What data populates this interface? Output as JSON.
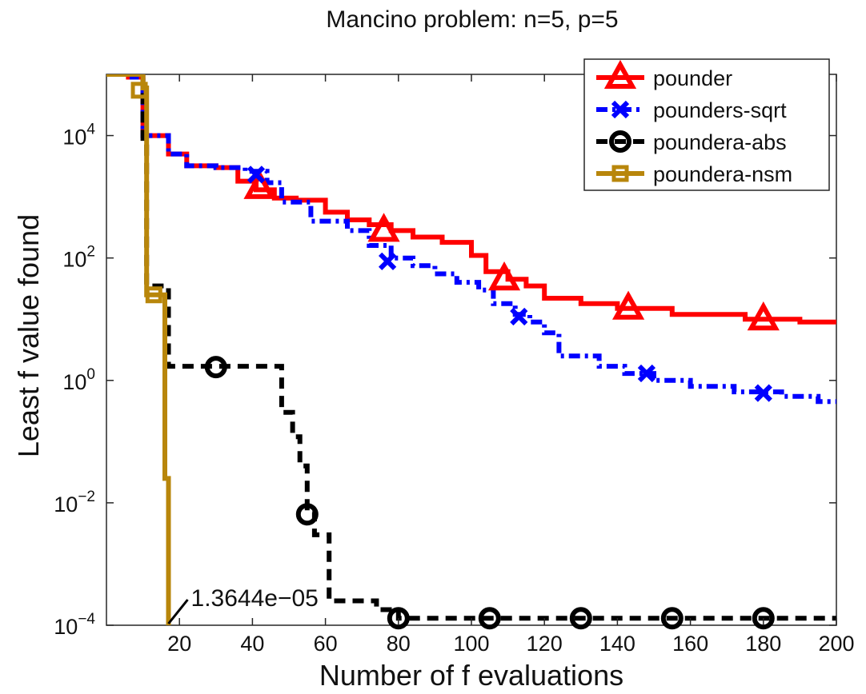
{
  "chart_data": {
    "type": "line",
    "title": "Mancino problem: n=5, p=5",
    "xlabel": "Number of f evaluations",
    "ylabel": "Least f value found",
    "xlim": [
      0,
      200
    ],
    "ylim": [
      0.0001,
      100000
    ],
    "yscale": "log",
    "grid": false,
    "legend_position": "top-right",
    "x_ticks": [
      20,
      40,
      60,
      80,
      100,
      120,
      140,
      160,
      180,
      200
    ],
    "y_ticks": [
      {
        "value": 0.0001,
        "base": "10",
        "exp": "−4"
      },
      {
        "value": 0.01,
        "base": "10",
        "exp": "−2"
      },
      {
        "value": 1,
        "base": "10",
        "exp": "0"
      },
      {
        "value": 100,
        "base": "10",
        "exp": "2"
      },
      {
        "value": 10000,
        "base": "10",
        "exp": "4"
      }
    ],
    "annotation": {
      "text": "1.3644e−05",
      "x": 17,
      "y": 0.0001,
      "color": "#B8860B"
    },
    "series": [
      {
        "name": "pounder",
        "color": "#FF0000",
        "dash": "",
        "width": 6,
        "marker": "triangle",
        "points": [
          [
            0,
            100000
          ],
          [
            6,
            100000
          ],
          [
            6,
            90000
          ],
          [
            10,
            90000
          ],
          [
            10,
            10000
          ],
          [
            17,
            10000
          ],
          [
            17,
            5000
          ],
          [
            22,
            5000
          ],
          [
            22,
            3200
          ],
          [
            30,
            3200
          ],
          [
            30,
            3000
          ],
          [
            36,
            3000
          ],
          [
            36,
            1800
          ],
          [
            41,
            1800
          ],
          [
            41,
            1300
          ],
          [
            46,
            1300
          ],
          [
            46,
            950
          ],
          [
            52,
            950
          ],
          [
            52,
            880
          ],
          [
            60,
            880
          ],
          [
            60,
            560
          ],
          [
            66,
            560
          ],
          [
            66,
            420
          ],
          [
            72,
            420
          ],
          [
            72,
            350
          ],
          [
            78,
            350
          ],
          [
            78,
            280
          ],
          [
            84,
            280
          ],
          [
            84,
            220
          ],
          [
            92,
            220
          ],
          [
            92,
            180
          ],
          [
            100,
            180
          ],
          [
            100,
            110
          ],
          [
            104,
            110
          ],
          [
            104,
            60
          ],
          [
            110,
            60
          ],
          [
            110,
            45
          ],
          [
            115,
            45
          ],
          [
            115,
            35
          ],
          [
            120,
            35
          ],
          [
            120,
            22
          ],
          [
            130,
            22
          ],
          [
            130,
            18
          ],
          [
            140,
            18
          ],
          [
            140,
            15
          ],
          [
            155,
            15
          ],
          [
            155,
            12
          ],
          [
            175,
            12
          ],
          [
            175,
            10
          ],
          [
            190,
            10
          ],
          [
            190,
            9
          ],
          [
            200,
            9
          ]
        ],
        "markers": [
          [
            42,
            1400
          ],
          [
            76,
            280
          ],
          [
            109,
            45
          ],
          [
            143,
            15
          ],
          [
            180,
            10
          ]
        ]
      },
      {
        "name": "pounders-sqrt",
        "color": "#0000FF",
        "dash": "14,6,4,6",
        "width": 6,
        "marker": "x",
        "points": [
          [
            0,
            100000
          ],
          [
            7,
            100000
          ],
          [
            7,
            90000
          ],
          [
            10,
            90000
          ],
          [
            10,
            10000
          ],
          [
            17,
            10000
          ],
          [
            17,
            5000
          ],
          [
            22,
            5000
          ],
          [
            22,
            3200
          ],
          [
            30,
            3200
          ],
          [
            30,
            3000
          ],
          [
            38,
            3000
          ],
          [
            38,
            2600
          ],
          [
            44,
            2600
          ],
          [
            44,
            1700
          ],
          [
            48,
            1700
          ],
          [
            48,
            820
          ],
          [
            56,
            820
          ],
          [
            56,
            400
          ],
          [
            66,
            400
          ],
          [
            66,
            280
          ],
          [
            72,
            280
          ],
          [
            72,
            160
          ],
          [
            78,
            160
          ],
          [
            78,
            100
          ],
          [
            84,
            100
          ],
          [
            84,
            75
          ],
          [
            90,
            75
          ],
          [
            90,
            55
          ],
          [
            96,
            55
          ],
          [
            96,
            40
          ],
          [
            102,
            40
          ],
          [
            102,
            30
          ],
          [
            106,
            30
          ],
          [
            106,
            18
          ],
          [
            112,
            18
          ],
          [
            112,
            12
          ],
          [
            116,
            12
          ],
          [
            116,
            9
          ],
          [
            120,
            9
          ],
          [
            120,
            6
          ],
          [
            124,
            6
          ],
          [
            124,
            2.5
          ],
          [
            135,
            2.5
          ],
          [
            135,
            1.7
          ],
          [
            142,
            1.7
          ],
          [
            142,
            1.3
          ],
          [
            150,
            1.3
          ],
          [
            150,
            1
          ],
          [
            160,
            1
          ],
          [
            160,
            0.8
          ],
          [
            172,
            0.8
          ],
          [
            172,
            0.65
          ],
          [
            185,
            0.65
          ],
          [
            185,
            0.55
          ],
          [
            195,
            0.55
          ],
          [
            195,
            0.45
          ],
          [
            200,
            0.45
          ]
        ],
        "markers": [
          [
            41,
            2300
          ],
          [
            77,
            88
          ],
          [
            113,
            11
          ],
          [
            148,
            1.3
          ],
          [
            180,
            0.62
          ]
        ]
      },
      {
        "name": "poundera-abs",
        "color": "#000000",
        "dash": "14,9",
        "width": 6,
        "marker": "circle",
        "points": [
          [
            0,
            100000
          ],
          [
            10,
            100000
          ],
          [
            10,
            9000
          ],
          [
            11,
            9000
          ],
          [
            11,
            35
          ],
          [
            17,
            35
          ],
          [
            17,
            1.7
          ],
          [
            30,
            1.7
          ],
          [
            48,
            1.7
          ],
          [
            48,
            0.3
          ],
          [
            51,
            0.3
          ],
          [
            51,
            0.12
          ],
          [
            53,
            0.12
          ],
          [
            53,
            0.04
          ],
          [
            55,
            0.04
          ],
          [
            55,
            0.007
          ],
          [
            57,
            0.007
          ],
          [
            57,
            0.003
          ],
          [
            61,
            0.003
          ],
          [
            61,
            0.00025
          ],
          [
            74,
            0.00025
          ],
          [
            74,
            0.00018
          ],
          [
            80,
            0.00018
          ],
          [
            80,
            0.00013
          ],
          [
            200,
            0.00013
          ]
        ],
        "markers": [
          [
            30,
            1.65
          ],
          [
            55,
            0.0065
          ],
          [
            80,
            0.00013
          ],
          [
            105,
            0.00013
          ],
          [
            130,
            0.00013
          ],
          [
            155,
            0.00013
          ],
          [
            180,
            0.00013
          ]
        ]
      },
      {
        "name": "poundera-nsm",
        "color": "#B8860B",
        "dash": "",
        "width": 6,
        "marker": "square",
        "points": [
          [
            0,
            100000
          ],
          [
            10,
            100000
          ],
          [
            10,
            60000
          ],
          [
            11,
            60000
          ],
          [
            11,
            25
          ],
          [
            16,
            25
          ],
          [
            16,
            0.025
          ],
          [
            17,
            0.025
          ],
          [
            17,
            0.0001
          ]
        ],
        "markers": [
          [
            9,
            55000
          ],
          [
            13,
            25
          ]
        ]
      }
    ]
  }
}
